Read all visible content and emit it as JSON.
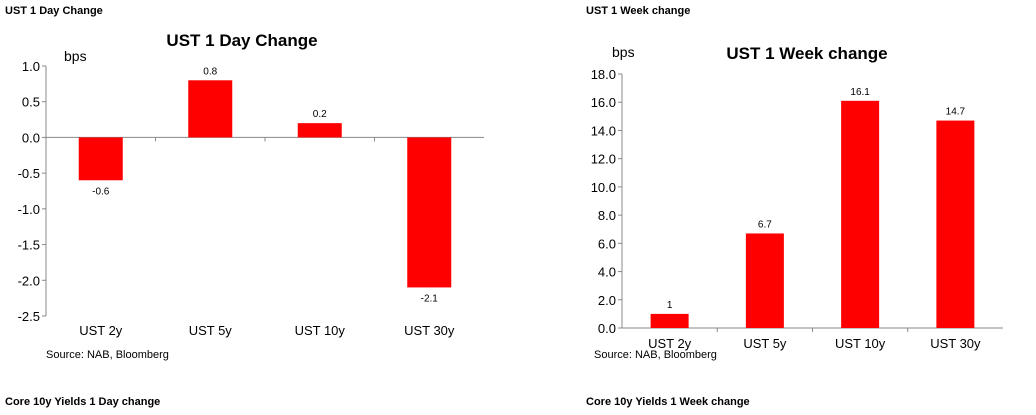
{
  "headings": {
    "left_top": "UST 1 Day Change",
    "right_top": "UST 1 Week change",
    "left_bottom": "Core 10y Yields 1 Day change",
    "right_bottom": "Core 10y Yields 1 Week change"
  },
  "colors": {
    "bar": "#ff0000",
    "axis": "#888888"
  },
  "chart_data": [
    {
      "type": "bar",
      "title": "UST 1 Day Change",
      "ylabel": "bps",
      "source": "Source: NAB, Bloomberg",
      "categories": [
        "UST 2y",
        "UST 5y",
        "UST 10y",
        "UST 30y"
      ],
      "values": [
        -0.6,
        0.8,
        0.2,
        -2.1
      ],
      "value_labels": [
        "-0.6",
        "0.8",
        "0.2",
        "-2.1"
      ],
      "ylim": [
        -2.5,
        1.0
      ],
      "yticks": [
        "-2.5",
        "-2.0",
        "-1.5",
        "-1.0",
        "-0.5",
        "0.0",
        "0.5",
        "1.0"
      ],
      "ytick_values": [
        -2.5,
        -2.0,
        -1.5,
        -1.0,
        -0.5,
        0.0,
        0.5,
        1.0
      ],
      "grid": false,
      "legend": "none"
    },
    {
      "type": "bar",
      "title": "UST 1 Week change",
      "ylabel": "bps",
      "source": "Source: NAB, Bloomberg",
      "categories": [
        "UST 2y",
        "UST 5y",
        "UST 10y",
        "UST 30y"
      ],
      "values": [
        1,
        6.7,
        16.1,
        14.7
      ],
      "value_labels": [
        "1",
        "6.7",
        "16.1",
        "14.7"
      ],
      "ylim": [
        0,
        18.0
      ],
      "yticks": [
        "0.0",
        "2.0",
        "4.0",
        "6.0",
        "8.0",
        "10.0",
        "12.0",
        "14.0",
        "16.0",
        "18.0"
      ],
      "ytick_values": [
        0,
        2,
        4,
        6,
        8,
        10,
        12,
        14,
        16,
        18
      ],
      "grid": false,
      "legend": "none"
    }
  ]
}
